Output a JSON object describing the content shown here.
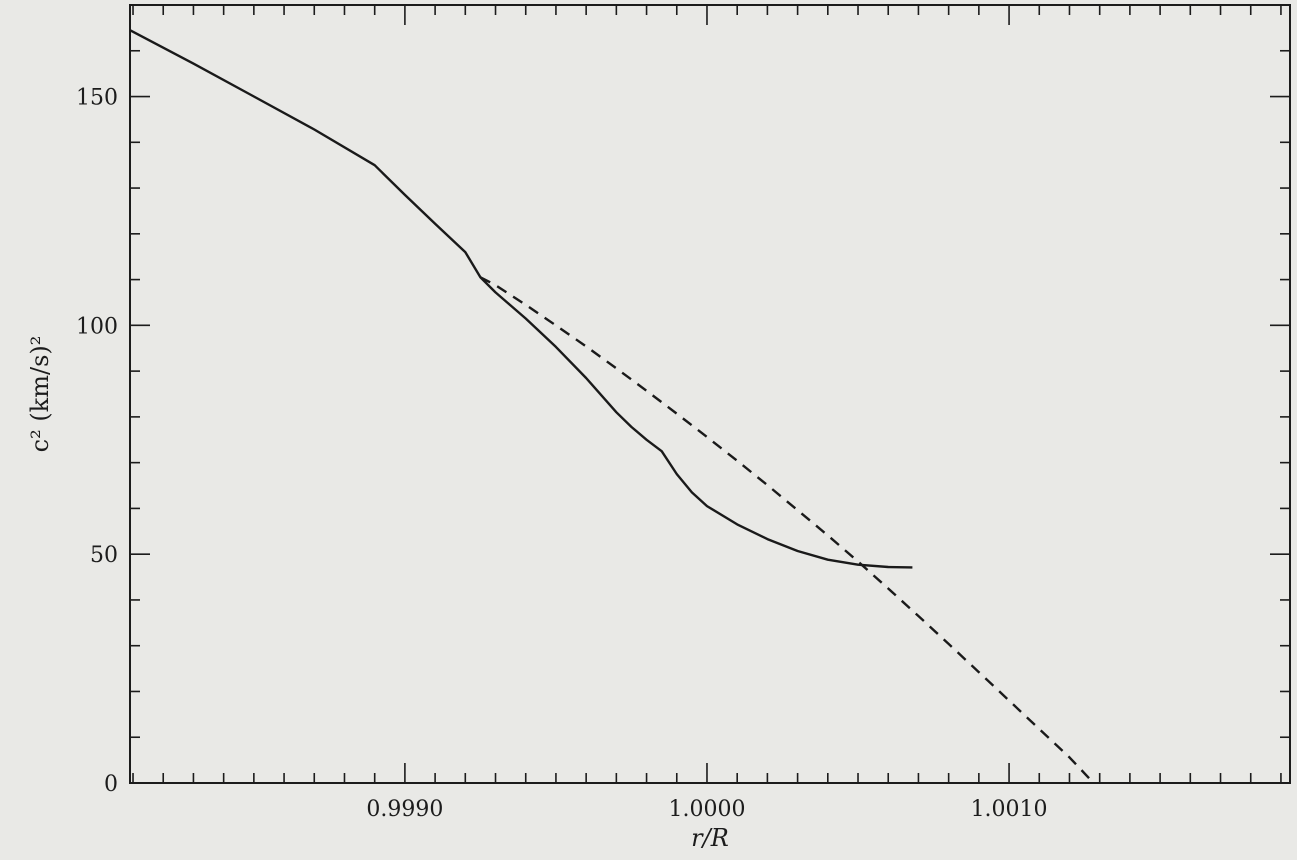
{
  "chart_data": {
    "type": "line",
    "title": "",
    "xlabel": "r/R",
    "ylabel": "c² (km/s)²",
    "xlim": [
      0.99809,
      1.00193
    ],
    "ylim": [
      0,
      170
    ],
    "x_ticks": [
      0.999,
      1.0,
      1.001
    ],
    "x_tick_labels": [
      "0.9990",
      "1.0000",
      "1.0010"
    ],
    "x_minor_step": 0.0001,
    "y_ticks": [
      0,
      50,
      100,
      150
    ],
    "y_tick_labels": [
      "0",
      "50",
      "100",
      "150"
    ],
    "y_minor_step": 10,
    "grid": false,
    "legend": "none",
    "series": [
      {
        "style": "solid",
        "color": "#1a1a1a",
        "points": [
          [
            0.99809,
            164.5
          ],
          [
            0.9983,
            157.2
          ],
          [
            0.9985,
            150.0
          ],
          [
            0.9987,
            142.8
          ],
          [
            0.9989,
            135.0
          ],
          [
            0.999,
            128.5
          ],
          [
            0.9991,
            122.2
          ],
          [
            0.9992,
            116.0
          ],
          [
            0.99925,
            110.5
          ],
          [
            0.9993,
            107.2
          ],
          [
            0.9994,
            101.5
          ],
          [
            0.9995,
            95.3
          ],
          [
            0.9996,
            88.5
          ],
          [
            0.9997,
            81.0
          ],
          [
            0.99975,
            77.8
          ],
          [
            0.9998,
            75.0
          ],
          [
            0.99985,
            72.5
          ],
          [
            0.9999,
            67.5
          ],
          [
            0.99995,
            63.5
          ],
          [
            1.0,
            60.5
          ],
          [
            1.0001,
            56.5
          ],
          [
            1.0002,
            53.3
          ],
          [
            1.0003,
            50.7
          ],
          [
            1.0004,
            48.8
          ],
          [
            1.0005,
            47.7
          ],
          [
            1.0006,
            47.2
          ],
          [
            1.00068,
            47.1
          ]
        ]
      },
      {
        "style": "dashed",
        "color": "#1a1a1a",
        "points": [
          [
            0.99925,
            110.5
          ],
          [
            0.9993,
            108.8
          ],
          [
            0.9994,
            104.5
          ],
          [
            0.9995,
            100.0
          ],
          [
            0.9996,
            95.4
          ],
          [
            0.9997,
            90.6
          ],
          [
            0.9998,
            85.7
          ],
          [
            0.9999,
            80.7
          ],
          [
            1.0,
            75.6
          ],
          [
            1.0001,
            70.4
          ],
          [
            1.0002,
            65.1
          ],
          [
            1.0003,
            59.6
          ],
          [
            1.0004,
            54.1
          ],
          [
            1.0005,
            48.4
          ],
          [
            1.0006,
            42.5
          ],
          [
            1.0007,
            36.5
          ],
          [
            1.0008,
            30.4
          ],
          [
            1.0009,
            24.2
          ],
          [
            1.001,
            18.0
          ],
          [
            1.0011,
            11.8
          ],
          [
            1.0012,
            5.6
          ],
          [
            1.00128,
            0.0
          ]
        ]
      }
    ]
  }
}
